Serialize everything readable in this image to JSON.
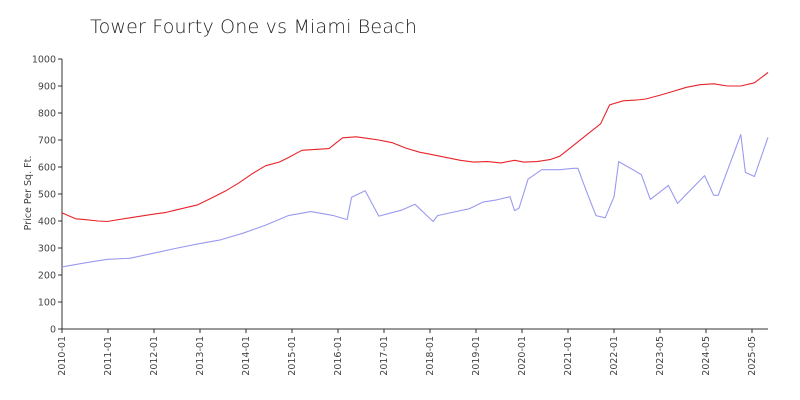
{
  "chart_data": {
    "type": "line",
    "title": "Tower Fourty One vs Miami Beach",
    "xlabel": "",
    "ylabel": "Price Per Sq. Ft.",
    "ylim": [
      0,
      1000
    ],
    "yticks": [
      0,
      100,
      200,
      300,
      400,
      500,
      600,
      700,
      800,
      900,
      1000
    ],
    "xticks": [
      "2010-01",
      "2011-01",
      "2012-01",
      "2013-01",
      "2014-01",
      "2015-01",
      "2016-01",
      "2017-01",
      "2018-01",
      "2019-01",
      "2020-01",
      "2021-01",
      "2022-01",
      "2023-05",
      "2024-05",
      "2025-05"
    ],
    "grid": false,
    "legend": "none",
    "colors": {
      "series_red": "#e8232a",
      "series_blue": "#9a9af0",
      "axis": "#333333"
    },
    "series": [
      {
        "color": "#e8232a",
        "x": [
          0,
          0.3,
          0.5,
          0.8,
          1.0,
          1.5,
          2.0,
          2.3,
          2.5,
          3.0,
          3.3,
          3.6,
          3.9,
          4.2,
          4.5,
          4.8,
          5.0,
          5.3,
          5.6,
          5.9,
          6.2,
          6.5,
          6.8,
          7.0,
          7.3,
          7.6,
          7.9,
          8.2,
          8.5,
          8.8,
          9.1,
          9.4,
          9.7,
          10.0,
          10.2,
          10.5,
          10.8,
          11.0,
          11.3,
          11.6,
          11.9,
          12.1,
          12.4,
          12.7,
          12.9,
          13.2,
          13.5,
          13.8,
          14.1,
          14.4,
          14.7,
          15.0,
          15.3,
          15.6
        ],
        "values": [
          430,
          408,
          405,
          400,
          398,
          412,
          425,
          432,
          440,
          460,
          485,
          510,
          540,
          575,
          605,
          618,
          635,
          662,
          665,
          668,
          708,
          712,
          705,
          700,
          690,
          670,
          655,
          645,
          635,
          625,
          618,
          620,
          615,
          625,
          618,
          620,
          628,
          640,
          680,
          720,
          760,
          830,
          845,
          848,
          852,
          865,
          880,
          895,
          905,
          908,
          900,
          900,
          912,
          950
        ]
      },
      {
        "color": "#9a9af0",
        "x": [
          0,
          0.5,
          1.0,
          1.5,
          2.0,
          2.5,
          3.0,
          3.5,
          4.0,
          4.5,
          5.0,
          5.5,
          6.0,
          6.3,
          6.4,
          6.7,
          7.0,
          7.5,
          7.8,
          8.2,
          8.3,
          8.7,
          9.0,
          9.3,
          9.6,
          9.9,
          10.0,
          10.1,
          10.3,
          10.6,
          11.0,
          11.3,
          11.4,
          11.6,
          11.8,
          12.0,
          12.2,
          12.3,
          12.8,
          13.0,
          13.4,
          13.6,
          14.2,
          14.4,
          14.5,
          15.0,
          15.1,
          15.3,
          15.6
        ],
        "values": [
          230,
          245,
          258,
          262,
          280,
          298,
          315,
          330,
          355,
          385,
          420,
          435,
          420,
          405,
          488,
          512,
          418,
          440,
          462,
          398,
          420,
          435,
          445,
          470,
          478,
          490,
          438,
          448,
          555,
          590,
          590,
          595,
          595,
          505,
          420,
          412,
          490,
          620,
          572,
          480,
          532,
          465,
          568,
          495,
          495,
          720,
          580,
          565,
          710
        ]
      }
    ]
  }
}
